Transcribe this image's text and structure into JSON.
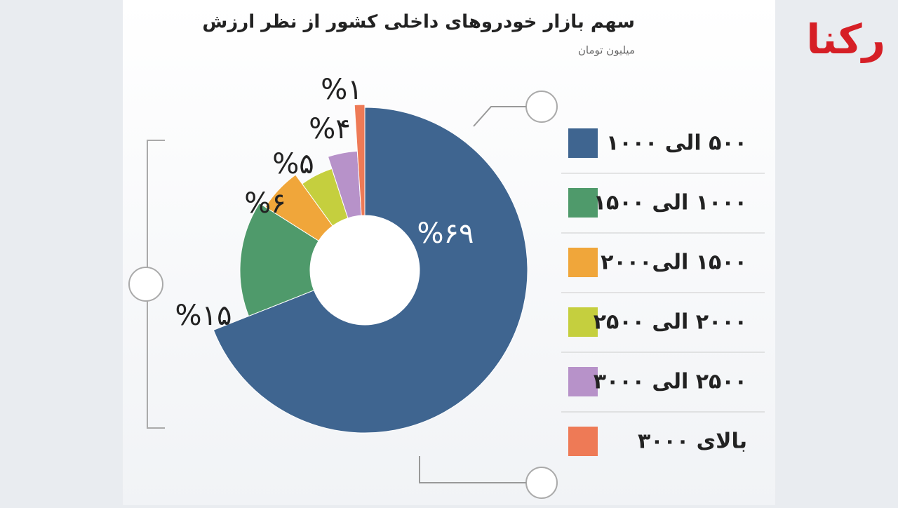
{
  "chart_data": {
    "type": "pie",
    "title": "سهم بازار خودروهای داخلی کشور از نظر ارزش",
    "subtitle": "میلیون تومان",
    "logo": "رکنا",
    "categories": [
      "۵۰۰ الی ۱۰۰۰",
      "۱۰۰۰ الی ۱۵۰۰",
      "۱۵۰۰ الی۲۰۰۰",
      "۲۰۰۰ الی ۲۵۰۰",
      "۲۵۰۰ الی ۳۰۰۰",
      "بالای ۳۰۰۰"
    ],
    "values": [
      69,
      15,
      6,
      5,
      4,
      1
    ],
    "value_labels": [
      "%۶۹",
      "%۱۵",
      "%۶",
      "%۵",
      "%۴",
      "%۱"
    ],
    "colors": [
      "#3f6590",
      "#4f9a6b",
      "#f0a63a",
      "#c5cf3e",
      "#b792c9",
      "#ee7a56"
    ]
  }
}
